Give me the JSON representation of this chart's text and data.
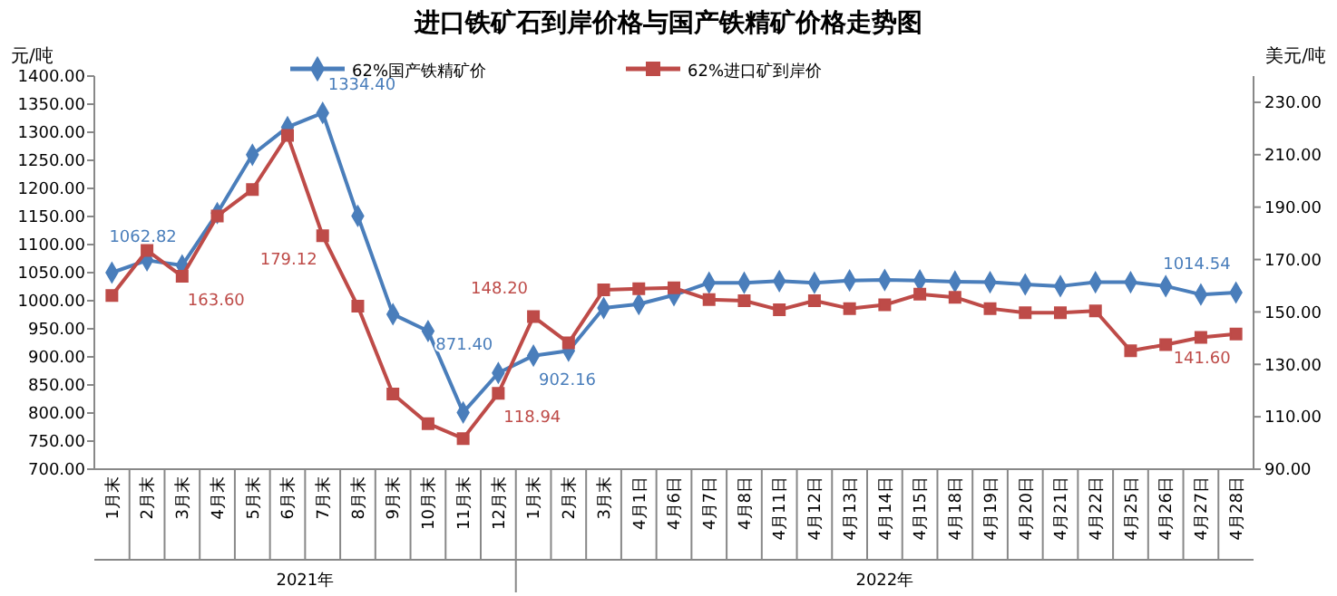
{
  "chart_data": {
    "type": "line",
    "title": "进口铁矿石到岸价格与国产铁精矿价格走势图",
    "ylabel": "元/吨",
    "y2label": "美元/吨",
    "categories": [
      "1月末",
      "2月末",
      "3月末",
      "4月末",
      "5月末",
      "6月末",
      "7月末",
      "8月末",
      "9月末",
      "10月末",
      "11月末",
      "12月末",
      "1月末",
      "2月末",
      "3月末",
      "4月1日",
      "4月6日",
      "4月7日",
      "4月8日",
      "4月11日",
      "4月12日",
      "4月13日",
      "4月14日",
      "4月15日",
      "4月18日",
      "4月19日",
      "4月20日",
      "4月21日",
      "4月22日",
      "4月25日",
      "4月26日",
      "4月27日",
      "4月28日"
    ],
    "annotations": [
      "2021年",
      "2022年"
    ],
    "ylim": [
      700,
      1400
    ],
    "yticks": [
      {
        "value": 700,
        "label": "700.00"
      },
      {
        "value": 750,
        "label": "750.00"
      },
      {
        "value": 800,
        "label": "800.00"
      },
      {
        "value": 850,
        "label": "850.00"
      },
      {
        "value": 900,
        "label": "900.00"
      },
      {
        "value": 950,
        "label": "950.00"
      },
      {
        "value": 1000,
        "label": "1000.00"
      },
      {
        "value": 1050,
        "label": "1050.00"
      },
      {
        "value": 1100,
        "label": "1100.00"
      },
      {
        "value": 1150,
        "label": "1150.00"
      },
      {
        "value": 1200,
        "label": "1200.00"
      },
      {
        "value": 1250,
        "label": "1250.00"
      },
      {
        "value": 1300,
        "label": "1300.00"
      },
      {
        "value": 1350,
        "label": "1350.00"
      },
      {
        "value": 1400,
        "label": "1400.00"
      }
    ],
    "y2lim": [
      90,
      240
    ],
    "y2ticks": [
      {
        "value": 90,
        "label": "90.00"
      },
      {
        "value": 110,
        "label": "110.00"
      },
      {
        "value": 130,
        "label": "130.00"
      },
      {
        "value": 150,
        "label": "150.00"
      },
      {
        "value": 170,
        "label": "170.00"
      },
      {
        "value": 190,
        "label": "190.00"
      },
      {
        "value": 210,
        "label": "210.00"
      },
      {
        "value": 230,
        "label": "230.00"
      }
    ],
    "grid": false,
    "legend": "top",
    "series": [
      {
        "name": "62%国产铁精矿价",
        "color": "#4a7ebb",
        "marker": "diamond",
        "values": [
          1050,
          1072,
          1062.82,
          1156,
          1260,
          1309,
          1334.4,
          1151,
          976,
          946,
          801,
          871.4,
          902.16,
          911,
          987,
          994,
          1010,
          1032,
          1032,
          1035,
          1032,
          1036,
          1037,
          1036,
          1034,
          1033,
          1029,
          1026,
          1033,
          1033,
          1026,
          1011,
          1014.54
        ],
        "value_labels": [
          null,
          null,
          "1062.82",
          null,
          null,
          null,
          "1334.40",
          null,
          null,
          null,
          null,
          "871.40",
          "902.16",
          null,
          null,
          null,
          null,
          null,
          null,
          null,
          null,
          null,
          null,
          null,
          null,
          null,
          null,
          null,
          null,
          null,
          null,
          null,
          "1014.54"
        ]
      },
      {
        "name": "62%进口矿到岸价",
        "color": "#be4b48",
        "marker": "square",
        "axis": "y2",
        "values": [
          156.3,
          173.5,
          163.6,
          186.6,
          196.7,
          217.4,
          179.12,
          152.2,
          118.7,
          107.4,
          101.7,
          118.94,
          148.2,
          138.2,
          158.4,
          158.9,
          159.2,
          154.7,
          154.3,
          150.8,
          154.3,
          151.3,
          152.7,
          156.8,
          155.6,
          151.3,
          149.7,
          149.7,
          150.4,
          135.2,
          137.5,
          140.3,
          141.6
        ],
        "value_labels": [
          null,
          null,
          "163.60",
          null,
          null,
          null,
          "179.12",
          null,
          null,
          null,
          null,
          "118.94",
          "148.20",
          null,
          null,
          null,
          null,
          null,
          null,
          null,
          null,
          null,
          null,
          null,
          null,
          null,
          null,
          null,
          null,
          null,
          null,
          null,
          "141.60"
        ]
      }
    ]
  }
}
